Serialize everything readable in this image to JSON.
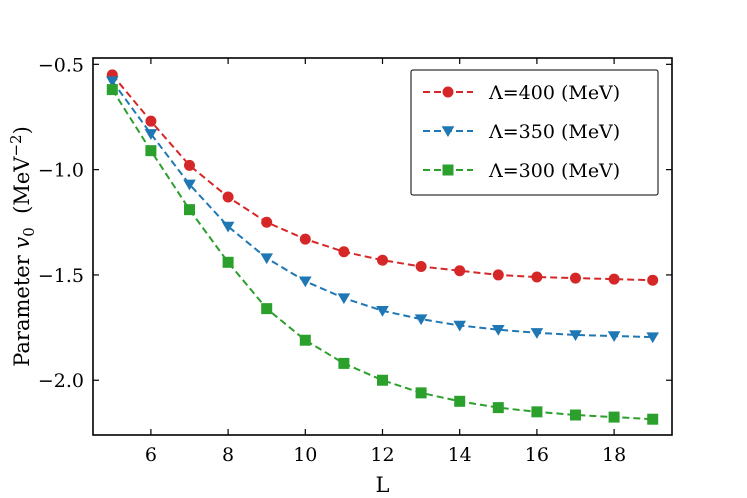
{
  "chart_data": {
    "type": "line",
    "title": "",
    "xlabel": "L",
    "ylabel_prefix": "Parameter ",
    "ylabel_symbol": "v",
    "ylabel_subscript": "0",
    "ylabel_unit_open": "  (MeV",
    "ylabel_unit_exp": "−2",
    "ylabel_unit_close": ")",
    "xlim": [
      4.5,
      19.5
    ],
    "ylim": [
      -2.26,
      -0.47
    ],
    "xticks": [
      6,
      8,
      10,
      12,
      14,
      16,
      18
    ],
    "yticks": [
      -0.5,
      -1.0,
      -1.5,
      -2.0
    ],
    "ytick_labels": [
      "−0.5",
      "−1.0",
      "−1.5",
      "−2.0"
    ],
    "grid": false,
    "legend_position": "top-right",
    "x": [
      5,
      6,
      7,
      8,
      9,
      10,
      11,
      12,
      13,
      14,
      15,
      16,
      17,
      18,
      19
    ],
    "series": [
      {
        "name": "Λ=400 (MeV)",
        "color": "#d62728",
        "marker": "circle",
        "values": [
          -0.55,
          -0.77,
          -0.98,
          -1.13,
          -1.25,
          -1.33,
          -1.39,
          -1.43,
          -1.46,
          -1.48,
          -1.5,
          -1.51,
          -1.515,
          -1.52,
          -1.525
        ]
      },
      {
        "name": "Λ=350 (MeV)",
        "color": "#1f77b4",
        "marker": "triangle-down",
        "values": [
          -0.58,
          -0.83,
          -1.07,
          -1.27,
          -1.42,
          -1.53,
          -1.61,
          -1.67,
          -1.71,
          -1.74,
          -1.76,
          -1.775,
          -1.785,
          -1.79,
          -1.795
        ]
      },
      {
        "name": "Λ=300 (MeV)",
        "color": "#2ca02c",
        "marker": "square",
        "values": [
          -0.62,
          -0.91,
          -1.19,
          -1.44,
          -1.66,
          -1.81,
          -1.92,
          -2.0,
          -2.06,
          -2.1,
          -2.13,
          -2.15,
          -2.165,
          -2.175,
          -2.185
        ]
      }
    ]
  }
}
